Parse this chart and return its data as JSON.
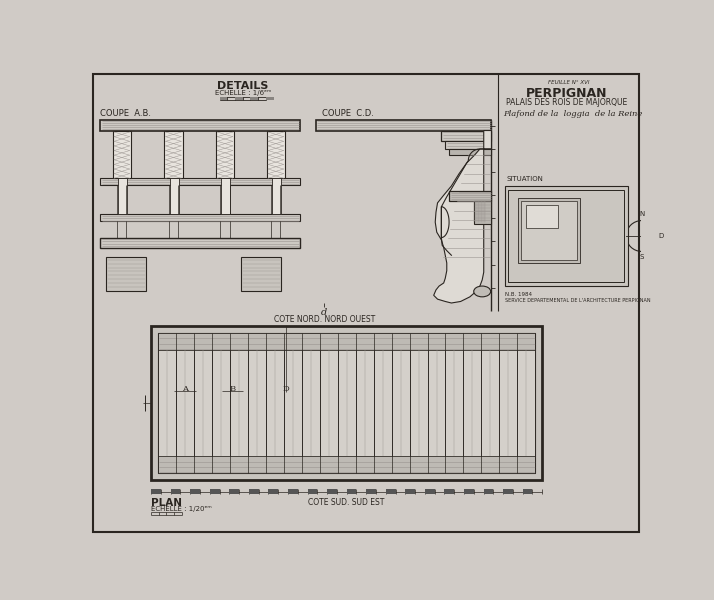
{
  "bg_color": "#d0cbc6",
  "line_color": "#2a2520",
  "line_color_light": "#9a9490",
  "fill_beam": "#e8e4de",
  "fill_wood": "#cdc9c3",
  "fill_dark": "#b8b4ae",
  "title_main": "PERPIGNAN",
  "title_sub1": "PALAIS DES ROIS DE MAJORQUE",
  "title_sub2": "Plafond de la  loggia  de la Reine",
  "details_title": "DETAILS",
  "coupe_ab": "COUPE  A.B.",
  "coupe_cd": "COUPE  C.D.",
  "situation": "SITUATION",
  "plan_label": "PLAN",
  "cote_nord": "COTE NORD. NORD OUEST",
  "cote_sud": "COTE SUD. SUD EST",
  "sheet_ref": "FEUILLE N° XVI",
  "nb_text": "N.B. 1984",
  "service_text": "SERVICE DEPARTEMENTAL DE L'ARCHITECTURE PERPIGNAN"
}
